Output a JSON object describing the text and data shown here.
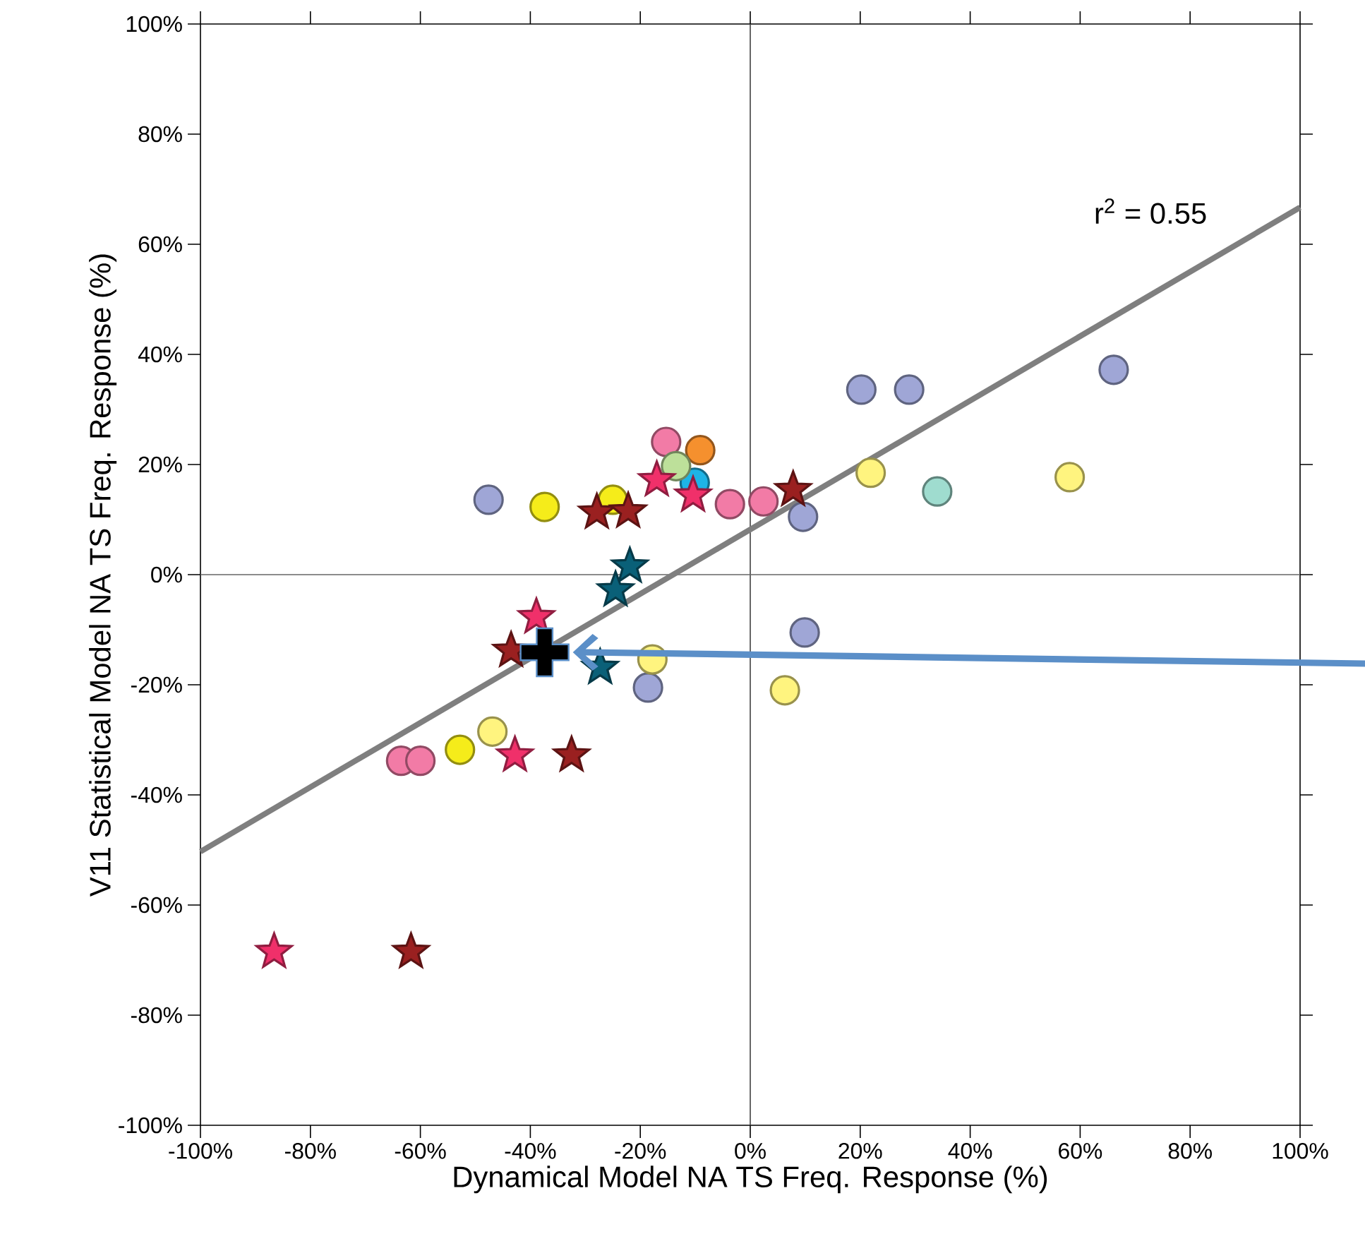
{
  "chart_data": {
    "type": "scatter",
    "xlabel": "Dynamical Model NA TS Freq. Response (%)",
    "ylabel": "V11 Statistical Model NA TS Freq. Response (%)",
    "xlim": [
      -100,
      100
    ],
    "ylim": [
      -100,
      100
    ],
    "xticks": [
      {
        "value": -100,
        "label": "-100%"
      },
      {
        "value": -80,
        "label": "-80%"
      },
      {
        "value": -60,
        "label": "-60%"
      },
      {
        "value": -40,
        "label": "-40%"
      },
      {
        "value": -20,
        "label": "-20%"
      },
      {
        "value": 0,
        "label": "0%"
      },
      {
        "value": 20,
        "label": "20%"
      },
      {
        "value": 40,
        "label": "40%"
      },
      {
        "value": 60,
        "label": "60%"
      },
      {
        "value": 80,
        "label": "80%"
      },
      {
        "value": 100,
        "label": "100%"
      }
    ],
    "yticks": [
      {
        "value": -100,
        "label": "-100%"
      },
      {
        "value": -80,
        "label": "-80%"
      },
      {
        "value": -60,
        "label": "-60%"
      },
      {
        "value": -40,
        "label": "-40%"
      },
      {
        "value": -20,
        "label": "-20%"
      },
      {
        "value": 0,
        "label": "0%"
      },
      {
        "value": 20,
        "label": "20%"
      },
      {
        "value": 40,
        "label": "40%"
      },
      {
        "value": 60,
        "label": "60%"
      },
      {
        "value": 80,
        "label": "80%"
      },
      {
        "value": 100,
        "label": "100%"
      }
    ],
    "ref_lines": [
      {
        "axis": "x",
        "value": 0,
        "color": "#404040"
      },
      {
        "axis": "y",
        "value": 0,
        "color": "#666666"
      }
    ],
    "annotations": [
      "r$^{2}$ = 0.55"
    ],
    "series": [
      {
        "type": "line",
        "color": "#7f7f7f",
        "marker": "none",
        "x": [
          -100,
          100
        ],
        "values": [
          -50.3,
          66.7
        ]
      },
      {
        "color": "#9fa6d6",
        "marker": "circle",
        "x": [
          -47.6,
          9.6,
          20.2,
          28.9,
          66.1,
          9.9,
          -18.6
        ],
        "values": [
          13.6,
          10.5,
          33.6,
          33.6,
          37.2,
          -10.5,
          -20.5
        ]
      },
      {
        "color": "#fff47f",
        "marker": "circle",
        "x": [
          21.9,
          58.1,
          -17.8,
          6.3,
          -46.9
        ],
        "values": [
          18.5,
          17.7,
          -15.4,
          -21.0,
          -28.5
        ]
      },
      {
        "color": "#f5ec1a",
        "marker": "circle",
        "x": [
          -37.4,
          -25.0,
          -52.8
        ],
        "values": [
          12.3,
          13.6,
          -31.8
        ]
      },
      {
        "color": "#f27ba6",
        "marker": "circle",
        "x": [
          -15.3,
          -3.7,
          2.4,
          -63.5,
          -60.0
        ],
        "values": [
          24.1,
          12.8,
          13.3,
          -33.8,
          -33.8
        ]
      },
      {
        "color": "#1eb4e6",
        "marker": "circle",
        "x": [
          -10.1
        ],
        "values": [
          16.7
        ]
      },
      {
        "color": "#f5902e",
        "marker": "circle",
        "x": [
          -9.1
        ],
        "values": [
          22.6
        ]
      },
      {
        "color": "#bde09a",
        "marker": "circle",
        "x": [
          -13.5
        ],
        "values": [
          19.7
        ]
      },
      {
        "color": "#9fdccf",
        "marker": "circle",
        "x": [
          34.0
        ],
        "values": [
          15.1
        ]
      },
      {
        "color": "#f0306a",
        "marker": "star",
        "x": [
          -17.0,
          -10.4,
          -38.9,
          -42.8,
          -86.6
        ],
        "values": [
          17.2,
          14.4,
          -7.7,
          -32.8,
          -68.5
        ]
      },
      {
        "color": "#9a2020",
        "marker": "star",
        "x": [
          -27.9,
          -22.2,
          7.8,
          -32.5,
          -61.7,
          -43.5
        ],
        "values": [
          11.3,
          11.5,
          15.4,
          -32.8,
          -68.5,
          -13.8
        ]
      },
      {
        "color": "#0a6078",
        "marker": "star",
        "x": [
          -21.9,
          -24.5,
          -27.3
        ],
        "values": [
          1.5,
          -2.8,
          -16.9
        ]
      },
      {
        "color": "#000000",
        "marker": "cross",
        "x": [
          -37.4
        ],
        "values": [
          -14.1
        ]
      }
    ]
  }
}
